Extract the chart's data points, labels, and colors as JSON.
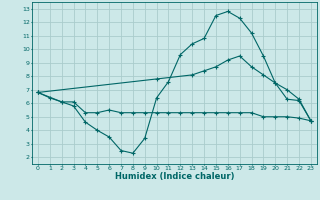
{
  "xlabel": "Humidex (Indice chaleur)",
  "background_color": "#cce8e8",
  "grid_color": "#aacccc",
  "line_color": "#006666",
  "xlim": [
    -0.5,
    23.5
  ],
  "ylim": [
    1.5,
    13.5
  ],
  "xticks": [
    0,
    1,
    2,
    3,
    4,
    5,
    6,
    7,
    8,
    9,
    10,
    11,
    12,
    13,
    14,
    15,
    16,
    17,
    18,
    19,
    20,
    21,
    22,
    23
  ],
  "yticks": [
    2,
    3,
    4,
    5,
    6,
    7,
    8,
    9,
    10,
    11,
    12,
    13
  ],
  "curve1_x": [
    0,
    1,
    2,
    3,
    4,
    5,
    6,
    7,
    8,
    9,
    10,
    11,
    12,
    13,
    14,
    15,
    16,
    17,
    18,
    19,
    20,
    21,
    22,
    23
  ],
  "curve1_y": [
    6.8,
    6.4,
    6.1,
    6.1,
    5.3,
    5.3,
    5.5,
    5.3,
    5.3,
    5.3,
    5.3,
    5.3,
    5.3,
    5.3,
    5.3,
    5.3,
    5.3,
    5.3,
    5.3,
    5.0,
    5.0,
    5.0,
    4.9,
    4.7
  ],
  "curve2_x": [
    0,
    2,
    3,
    4,
    5,
    6,
    7,
    8,
    9,
    10,
    11,
    12,
    13,
    14,
    15,
    16,
    17,
    18,
    19,
    20,
    21,
    22,
    23
  ],
  "curve2_y": [
    6.8,
    6.1,
    5.8,
    4.6,
    4.0,
    3.5,
    2.5,
    2.3,
    3.4,
    6.4,
    7.6,
    9.6,
    10.4,
    10.8,
    12.5,
    12.8,
    12.3,
    11.2,
    9.5,
    7.5,
    6.3,
    6.2,
    4.7
  ],
  "curve3_x": [
    0,
    10,
    13,
    14,
    15,
    16,
    17,
    18,
    19,
    20,
    21,
    22,
    23
  ],
  "curve3_y": [
    6.8,
    7.8,
    8.1,
    8.4,
    8.7,
    9.2,
    9.5,
    8.7,
    8.1,
    7.5,
    7.0,
    6.3,
    4.7
  ]
}
